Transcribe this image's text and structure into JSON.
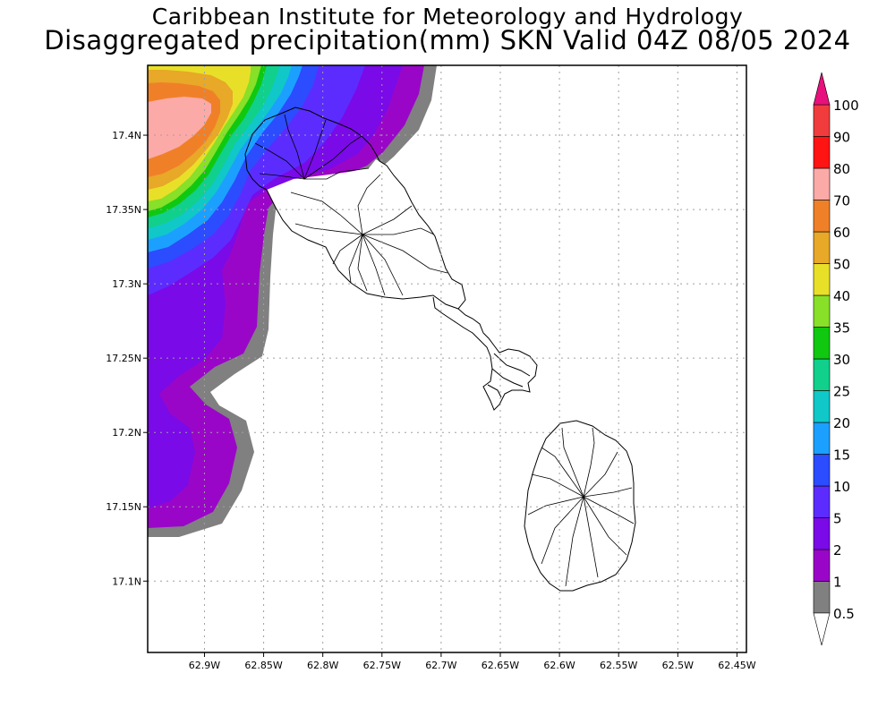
{
  "title": {
    "line1": "Caribbean Institute for Meteorology and Hydrology",
    "line2": "Disaggregated precipitation(mm) SKN Valid 04Z 08/05 2024"
  },
  "map": {
    "lon_ticks": [
      "62.9W",
      "62.85W",
      "62.8W",
      "62.75W",
      "62.7W",
      "62.65W",
      "62.6W",
      "62.55W",
      "62.5W",
      "62.45W"
    ],
    "lat_ticks": [
      "17.4N",
      "17.35N",
      "17.3N",
      "17.25N",
      "17.2N",
      "17.15N",
      "17.1N"
    ],
    "lon_values": [
      -62.9,
      -62.85,
      -62.8,
      -62.75,
      -62.7,
      -62.65,
      -62.6,
      -62.55,
      -62.5,
      -62.45
    ],
    "lat_values": [
      17.4,
      17.35,
      17.3,
      17.25,
      17.2,
      17.15,
      17.1
    ],
    "lon_range": [
      -62.948,
      -62.442
    ],
    "lat_range": [
      17.052,
      17.447
    ],
    "grid": true,
    "islands": [
      "St. Kitts",
      "Nevis"
    ]
  },
  "legend": {
    "bands": [
      {
        "label": "0.5",
        "color": "#ffffff"
      },
      {
        "label": "1",
        "color": "#808080"
      },
      {
        "label": "2",
        "color": "#9a06c8"
      },
      {
        "label": "5",
        "color": "#7a0ae8"
      },
      {
        "label": "10",
        "color": "#5c2cff"
      },
      {
        "label": "15",
        "color": "#2c4cff"
      },
      {
        "label": "20",
        "color": "#1ca0ff"
      },
      {
        "label": "25",
        "color": "#10c8c8"
      },
      {
        "label": "30",
        "color": "#10d08c"
      },
      {
        "label": "35",
        "color": "#10c810"
      },
      {
        "label": "40",
        "color": "#88e028"
      },
      {
        "label": "50",
        "color": "#e8e028"
      },
      {
        "label": "60",
        "color": "#e8a828"
      },
      {
        "label": "70",
        "color": "#f08028"
      },
      {
        "label": "80",
        "color": "#fcaaa8"
      },
      {
        "label": "90",
        "color": "#ff1414"
      },
      {
        "label": "100",
        "color": "#f03c3c"
      }
    ],
    "top_arrow_color": "#e8107c",
    "bottom_arrow_color": "#ffffff"
  }
}
